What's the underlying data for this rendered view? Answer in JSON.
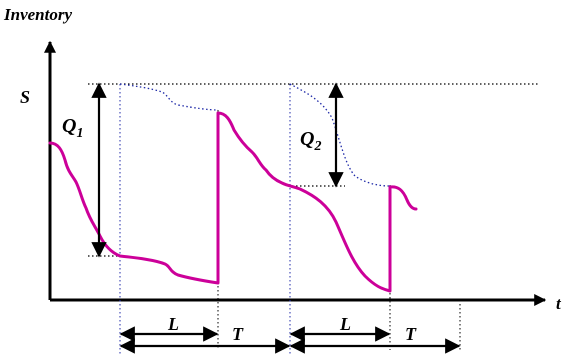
{
  "labels": {
    "y_axis": "Inventory",
    "x_axis": "t",
    "level": "S",
    "order_1": "Q",
    "order_1_sub": "1",
    "order_2": "Q",
    "order_2_sub": "2",
    "lead_time_1": "L",
    "review_1": "T",
    "lead_time_2": "L",
    "review_2": "T"
  },
  "colors": {
    "inventory_curve": "#CC0099",
    "projected_curve": "#1F2AA8",
    "axis": "#000000"
  }
}
